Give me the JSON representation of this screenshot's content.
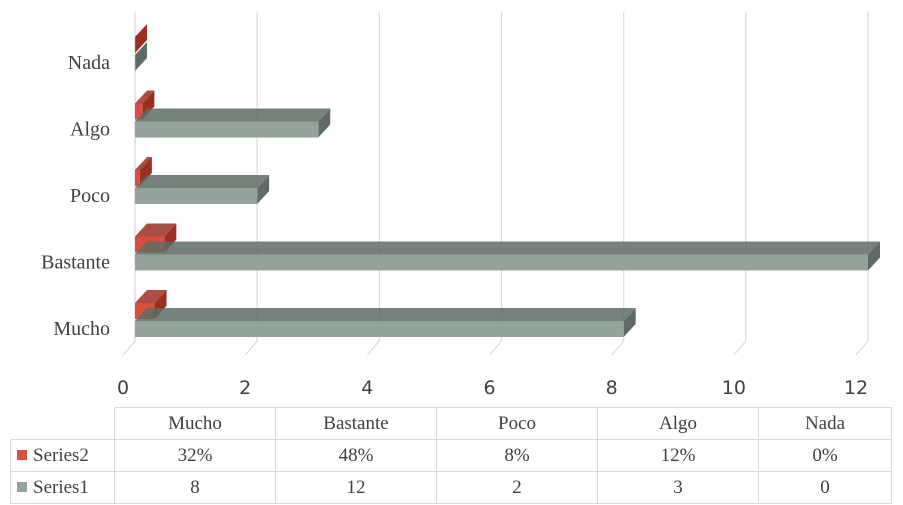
{
  "colors": {
    "series1": "#95a49b",
    "series1_side": "#5f6b64",
    "series2": "#d94f3d",
    "series2_side": "#9c2f22",
    "grid": "#d9d9d9"
  },
  "chart_data": {
    "type": "bar",
    "orientation": "horizontal",
    "style": "3d",
    "title": "",
    "xlabel": "",
    "ylabel": "",
    "xlim": [
      0,
      12
    ],
    "x_ticks": [
      "0",
      "2",
      "4",
      "6",
      "8",
      "10",
      "12"
    ],
    "grid": true,
    "categories": [
      "Mucho",
      "Bastante",
      "Poco",
      "Algo",
      "Nada"
    ],
    "series": [
      {
        "name": "Series2",
        "values": [
          0.32,
          0.48,
          0.08,
          0.12,
          0
        ],
        "labels": [
          "32%",
          "48%",
          "8%",
          "12%",
          "0%"
        ]
      },
      {
        "name": "Series1",
        "values": [
          8,
          12,
          2,
          3,
          0
        ],
        "labels": [
          "8",
          "12",
          "2",
          "3",
          "0"
        ]
      }
    ],
    "legend": "data-table-below"
  }
}
